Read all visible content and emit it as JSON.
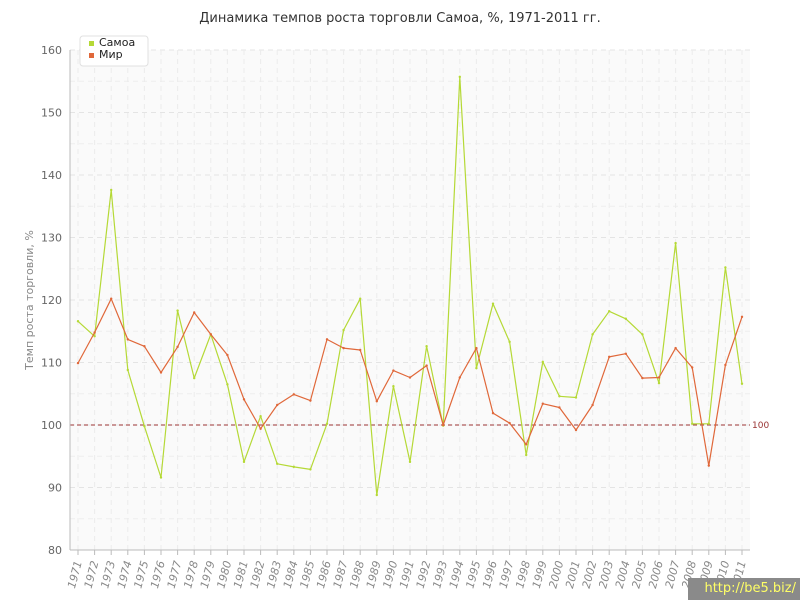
{
  "chart_data": {
    "type": "line",
    "title": "Динамика темпов роста торговли Самоа, %, 1971-2011 гг.",
    "ylabel": "Темп роста торговли, %",
    "xlabel": "",
    "ylim": [
      80,
      160
    ],
    "yticks": [
      80,
      90,
      100,
      110,
      120,
      130,
      140,
      150,
      160
    ],
    "grid": true,
    "legend_position": "top-left",
    "reference_line": {
      "value": 100,
      "label": "100",
      "color": "#993333"
    },
    "categories": [
      "1971",
      "1972",
      "1973",
      "1974",
      "1975",
      "1976",
      "1977",
      "1978",
      "1979",
      "1980",
      "1981",
      "1982",
      "1983",
      "1984",
      "1985",
      "1986",
      "1987",
      "1988",
      "1989",
      "1990",
      "1991",
      "1992",
      "1993",
      "1994",
      "1995",
      "1996",
      "1997",
      "1998",
      "1999",
      "2000",
      "2001",
      "2002",
      "2003",
      "2004",
      "2005",
      "2006",
      "2007",
      "2008",
      "2009",
      "2010",
      "2011"
    ],
    "series": [
      {
        "name": "Самоа",
        "color": "#b5d936",
        "values": [
          116.6,
          114.2,
          137.6,
          108.8,
          99.8,
          91.6,
          118.3,
          107.5,
          114.5,
          106.5,
          94.1,
          101.4,
          93.8,
          93.3,
          92.9,
          100.2,
          115.2,
          120.2,
          88.8,
          106.2,
          94.1,
          112.6,
          99.9,
          155.7,
          109.1,
          119.4,
          113.3,
          95.2,
          110.1,
          104.6,
          104.4,
          114.5,
          118.2,
          117.0,
          114.5,
          106.7,
          129.1,
          100.2,
          100.2,
          125.2,
          106.6
        ]
      },
      {
        "name": "Мир",
        "color": "#e0683a",
        "values": [
          109.9,
          114.8,
          120.2,
          113.7,
          112.6,
          108.4,
          112.5,
          118.0,
          114.5,
          111.2,
          104.1,
          99.4,
          103.2,
          104.9,
          103.9,
          113.7,
          112.3,
          112.0,
          103.8,
          108.7,
          107.6,
          109.5,
          100.0,
          107.6,
          112.3,
          101.9,
          100.3,
          96.9,
          103.4,
          102.8,
          99.2,
          103.2,
          110.9,
          111.4,
          107.5,
          107.6,
          112.3,
          109.2,
          93.5,
          109.6,
          117.3
        ]
      }
    ]
  },
  "watermark": "http://be5.biz/"
}
